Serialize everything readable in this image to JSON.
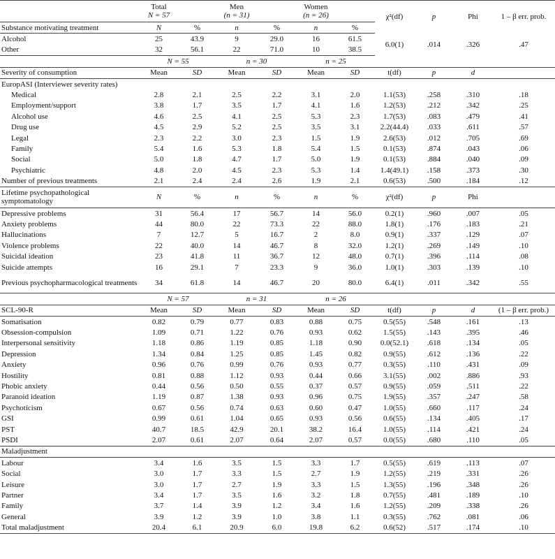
{
  "table": {
    "header": {
      "total": "Total",
      "total_n": "N = 57",
      "men": "Men",
      "men_n": "(n = 31)",
      "women": "Women",
      "women_n": "(n = 26)",
      "stat": "χ²(df)",
      "p": "p",
      "effect": "Phi",
      "power": "1 – β err. prob."
    },
    "rows": [
      [
        "Substance motivating treatment",
        "N",
        "%",
        "n",
        "%",
        "n",
        "%"
      ],
      [
        "Alcohol",
        "25",
        "43.9",
        "9",
        "29.0",
        "16",
        "61.5",
        "6.0(1)",
        ".014",
        ".326",
        ".47"
      ],
      [
        "Other",
        "32",
        "56.1",
        "22",
        "71.0",
        "10",
        "38.5"
      ],
      [
        "N = 55",
        "n = 30",
        "n = 25"
      ],
      [
        "Severity of consumption",
        "Mean",
        "SD",
        "Mean",
        "SD",
        "Mean",
        "SD",
        "t(df)",
        "p",
        "d"
      ],
      [
        "EuropASI (Interviewer severity rates)"
      ],
      [
        "Medical",
        "2.8",
        "2.1",
        "2.5",
        "2.2",
        "3.1",
        "2.0",
        "1.1(53)",
        ".258",
        ".310",
        ".18"
      ],
      [
        "Employment/support",
        "3.8",
        "1.7",
        "3.5",
        "1.7",
        "4.1",
        "1.6",
        "1.2(53)",
        ".212",
        ".342",
        ".25"
      ],
      [
        "Alcohol use",
        "4.6",
        "2.5",
        "4.1",
        "2.5",
        "5.3",
        "2.3",
        "1.7(53)",
        ".083",
        ".479",
        ".41"
      ],
      [
        "Drug use",
        "4.5",
        "2.9",
        "5.2",
        "2.5",
        "3.5",
        "3.1",
        "2.2(44.4)",
        ".033",
        ".611",
        ".57"
      ],
      [
        "Legal",
        "2.3",
        "2.2",
        "3.0",
        "2.3",
        "1.5",
        "1.9",
        "2.6(53)",
        ".012",
        ".705",
        ".69"
      ],
      [
        "Family",
        "5.4",
        "1.6",
        "5.3",
        "1.8",
        "5.4",
        "1.5",
        "0.1(53)",
        ".874",
        ".043",
        ".06"
      ],
      [
        "Social",
        "5.0",
        "1.8",
        "4.7",
        "1.7",
        "5.0",
        "1.9",
        "0.1(53)",
        ".884",
        ".040",
        ".09"
      ],
      [
        "Psychiatric",
        "4.8",
        "2.0",
        "4.5",
        "2.3",
        "5.3",
        "1.4",
        "1.4(49.1)",
        ".158",
        ".373",
        ".30"
      ],
      [
        "Number of previous treatments",
        "2.1",
        "2.4",
        "2.4",
        "2.6",
        "1.9",
        "2.1",
        "0.6(53)",
        ".500",
        ".184",
        ".12"
      ],
      [
        "Lifetime psychopathological symptomatology",
        "N",
        "%",
        "n",
        "%",
        "n",
        "%",
        "χ²(df)",
        "p",
        "Phi"
      ],
      [
        "Depressive problems",
        "31",
        "56.4",
        "17",
        "56.7",
        "14",
        "56.0",
        "0.2(1)",
        ".960",
        ".007",
        ".05"
      ],
      [
        "Anxiety problems",
        "44",
        "80.0",
        "22",
        "73.3",
        "22",
        "88.0",
        "1.8(1)",
        ".176",
        ".183",
        ".21"
      ],
      [
        "Hallucinations",
        "7",
        "12.7",
        "5",
        "16.7",
        "2",
        "8.0",
        "0.9(1)",
        ".337",
        ".129",
        ".07"
      ],
      [
        "Violence problems",
        "22",
        "40.0",
        "14",
        "46.7",
        "8",
        "32.0",
        "1.2(1)",
        ".269",
        ".149",
        ".10"
      ],
      [
        "Suicidal ideation",
        "23",
        "41.8",
        "11",
        "36.7",
        "12",
        "48.0",
        "0.7(1)",
        ".396",
        ".114",
        ".08"
      ],
      [
        "Suicide attempts",
        "16",
        "29.1",
        "7",
        "23.3",
        "9",
        "36.0",
        "1.0(1)",
        ".303",
        ".139",
        ".10"
      ],
      [
        "Previous psychopharmacological treatments",
        "34",
        "61.8",
        "14",
        "46.7",
        "20",
        "80.0",
        "6.4(1)",
        ".011",
        ".342",
        ".55"
      ],
      [
        "N = 57",
        "n = 31",
        "n = 26"
      ],
      [
        "SCL-90-R",
        "Mean",
        "SD",
        "Mean",
        "SD",
        "Mean",
        "SD",
        "t(df)",
        "p",
        "d",
        "(1 – β err. prob.)"
      ],
      [
        "Somatisation",
        "0.82",
        "0.79",
        "0.77",
        "0.83",
        "0.88",
        "0.75",
        "0.5(55)",
        ".548",
        ".161",
        ".13"
      ],
      [
        "Obsession-compulsion",
        "1.09",
        "0.71",
        "1.22",
        "0.76",
        "0.93",
        "0.62",
        "1.5(55)",
        ".143",
        ".395",
        ".46"
      ],
      [
        "Interpersonal sensitivity",
        "1.18",
        "0.86",
        "1.19",
        "0.85",
        "1.18",
        "0.90",
        "0.0(52.1)",
        ".618",
        ".134",
        ".05"
      ],
      [
        "Depression",
        "1.34",
        "0.84",
        "1.25",
        "0.85",
        "1.45",
        "0.82",
        "0.9(55)",
        ".612",
        ".136",
        ".22"
      ],
      [
        "Anxiety",
        "0.96",
        "0.76",
        "0.99",
        "0.76",
        "0.93",
        "0.77",
        "0.3(55)",
        ".110",
        ".431",
        ".09"
      ],
      [
        "Hostility",
        "0.81",
        "0.88",
        "1.12",
        "0.93",
        "0.44",
        "0.66",
        "3.1(55)",
        ".002",
        ".886",
        ".93"
      ],
      [
        "Phobic anxiety",
        "0.44",
        "0.56",
        "0.50",
        "0.55",
        "0.37",
        "0.57",
        "0.9(55)",
        ".059",
        ".511",
        ".22"
      ],
      [
        "Paranoid ideation",
        "1.19",
        "0.87",
        "1.38",
        "0.93",
        "0.96",
        "0.75",
        "1.9(55)",
        ".357",
        ".247",
        ".58"
      ],
      [
        "Psychoticism",
        "0.67",
        "0.56",
        "0.74",
        "0.63",
        "0.60",
        "0.47",
        "1.0(55)",
        ".660",
        ".117",
        ".24"
      ],
      [
        "GSI",
        "0.99",
        "0.61",
        "1.04",
        "0.65",
        "0.93",
        "0.56",
        "0.6(55)",
        ".134",
        ".405",
        ".17"
      ],
      [
        "PST",
        "40.7",
        "18.5",
        "42.9",
        "20.1",
        "38.2",
        "16.4",
        "1.0(55)",
        ".114",
        ".421",
        ".24"
      ],
      [
        "PSDI",
        "2.07",
        "0.61",
        "2.07",
        "0.64",
        "2.07",
        "0.57",
        "0.0(55)",
        ".680",
        ".110",
        ".05"
      ],
      [
        "Maladjustment"
      ],
      [
        "Labour",
        "3.4",
        "1.6",
        "3.5",
        "1.5",
        "3.3",
        "1.7",
        "0.5(55)",
        ".619",
        ".113",
        ".07"
      ],
      [
        "Social",
        "3.0",
        "1.7",
        "3.3",
        "1.5",
        "2.7",
        "1.9",
        "1.2(55)",
        ".219",
        ".331",
        ".26"
      ],
      [
        "Leisure",
        "3.0",
        "1.7",
        "2.7",
        "1.9",
        "3.3",
        "1.5",
        "1.3(55)",
        ".196",
        ".348",
        ".26"
      ],
      [
        "Partner",
        "3.4",
        "1.7",
        "3.5",
        "1.6",
        "3.2",
        "1.8",
        "0.7(55)",
        ".481",
        ".189",
        ".10"
      ],
      [
        "Family",
        "3.7",
        "1.4",
        "3.9",
        "1.2",
        "3.4",
        "1.6",
        "1.2(55)",
        ".209",
        ".338",
        ".26"
      ],
      [
        "General",
        "3.9",
        "1.2",
        "3.9",
        "1.0",
        "3.8",
        "1.1",
        "0.3(55)",
        ".762",
        ".081",
        ".06"
      ],
      [
        "Total maladjustment",
        "20.4",
        "6.1",
        "20.9",
        "6.0",
        "19.8",
        "6.2",
        "0.6(52)",
        ".517",
        ".174",
        ".10"
      ]
    ]
  }
}
